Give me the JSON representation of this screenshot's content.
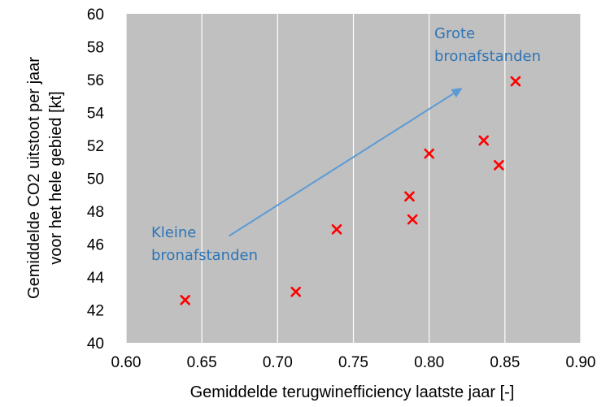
{
  "chart_data": {
    "type": "scatter",
    "title": "",
    "xlabel": "Gemiddelde terugwinefficiency laatste jaar [-]",
    "ylabel_lines": [
      "Gemiddelde CO2 uitstoot per jaar",
      "voor het hele gebied [kt]"
    ],
    "xlim": [
      0.6,
      0.9
    ],
    "ylim": [
      40,
      60
    ],
    "xticks": [
      "0.60",
      "0.65",
      "0.70",
      "0.75",
      "0.80",
      "0.85",
      "0.90"
    ],
    "yticks": [
      "40",
      "42",
      "44",
      "46",
      "48",
      "50",
      "52",
      "54",
      "56",
      "58",
      "60"
    ],
    "grid": "vertical",
    "marker": "x",
    "marker_color": "#ff0000",
    "plot_background": "#c0c0c0",
    "points": [
      {
        "x": 0.639,
        "y": 42.6
      },
      {
        "x": 0.712,
        "y": 43.1
      },
      {
        "x": 0.739,
        "y": 46.9
      },
      {
        "x": 0.787,
        "y": 48.9
      },
      {
        "x": 0.789,
        "y": 47.5
      },
      {
        "x": 0.8,
        "y": 51.5
      },
      {
        "x": 0.836,
        "y": 52.3
      },
      {
        "x": 0.846,
        "y": 50.8
      },
      {
        "x": 0.857,
        "y": 55.9
      }
    ],
    "arrow": {
      "from": {
        "x": 0.668,
        "y": 46.5
      },
      "to": {
        "x": 0.822,
        "y": 55.5
      },
      "color": "#5b9bd5"
    },
    "annotations": [
      {
        "lines": [
          "Kleine",
          "bronafstanden"
        ],
        "color": "#2e75b6"
      },
      {
        "lines": [
          "Grote",
          "bronafstanden"
        ],
        "color": "#2e75b6"
      }
    ]
  }
}
